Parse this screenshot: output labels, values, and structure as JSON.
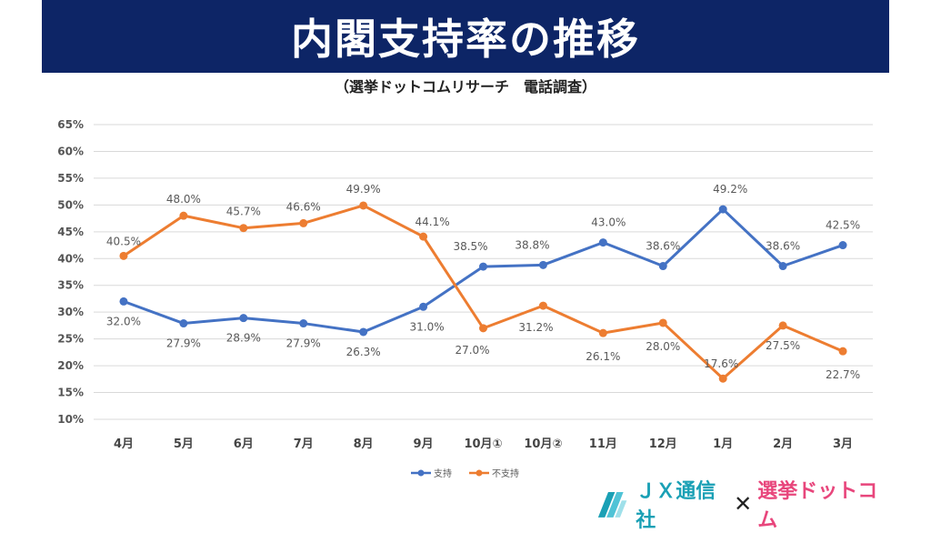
{
  "header": {
    "title": "内閣支持率の推移",
    "subtitle": "（選挙ドットコムリサーチ　電話調査）"
  },
  "chart_data": {
    "type": "line",
    "categories": [
      "4月",
      "5月",
      "6月",
      "7月",
      "8月",
      "9月",
      "10月①",
      "10月②",
      "11月",
      "12月",
      "1月",
      "2月",
      "3月"
    ],
    "y_ticks": [
      "10%",
      "15%",
      "20%",
      "25%",
      "30%",
      "35%",
      "40%",
      "45%",
      "50%",
      "55%",
      "60%",
      "65%"
    ],
    "ylim": [
      10,
      65
    ],
    "grid": true,
    "legend_position": "bottom",
    "series": [
      {
        "name": "支持",
        "color": "#4472c4",
        "values": [
          32.0,
          27.9,
          28.9,
          27.9,
          26.3,
          31.0,
          38.5,
          38.8,
          43.0,
          38.6,
          49.2,
          38.6,
          42.5
        ],
        "labels": [
          "32.0%",
          "27.9%",
          "28.9%",
          "27.9%",
          "26.3%",
          "31.0%",
          "38.5%",
          "38.8%",
          "43.0%",
          "38.6%",
          "49.2%",
          "38.6%",
          "42.5%"
        ]
      },
      {
        "name": "不支持",
        "color": "#ed7d31",
        "values": [
          40.5,
          48.0,
          45.7,
          46.6,
          49.9,
          44.1,
          27.0,
          31.2,
          26.1,
          28.0,
          17.6,
          27.5,
          22.7
        ],
        "labels": [
          "40.5%",
          "48.0%",
          "45.7%",
          "46.6%",
          "49.9%",
          "44.1%",
          "27.0%",
          "31.2%",
          "26.1%",
          "28.0%",
          "17.6%",
          "27.5%",
          "22.7%"
        ]
      }
    ]
  },
  "footer": {
    "logo_left": "ＪＸ通信社",
    "logo_sep": "✕",
    "logo_right": "選挙ドットコム",
    "logo_left_color": "#1aa0b5",
    "logo_right_color": "#e8467c"
  }
}
